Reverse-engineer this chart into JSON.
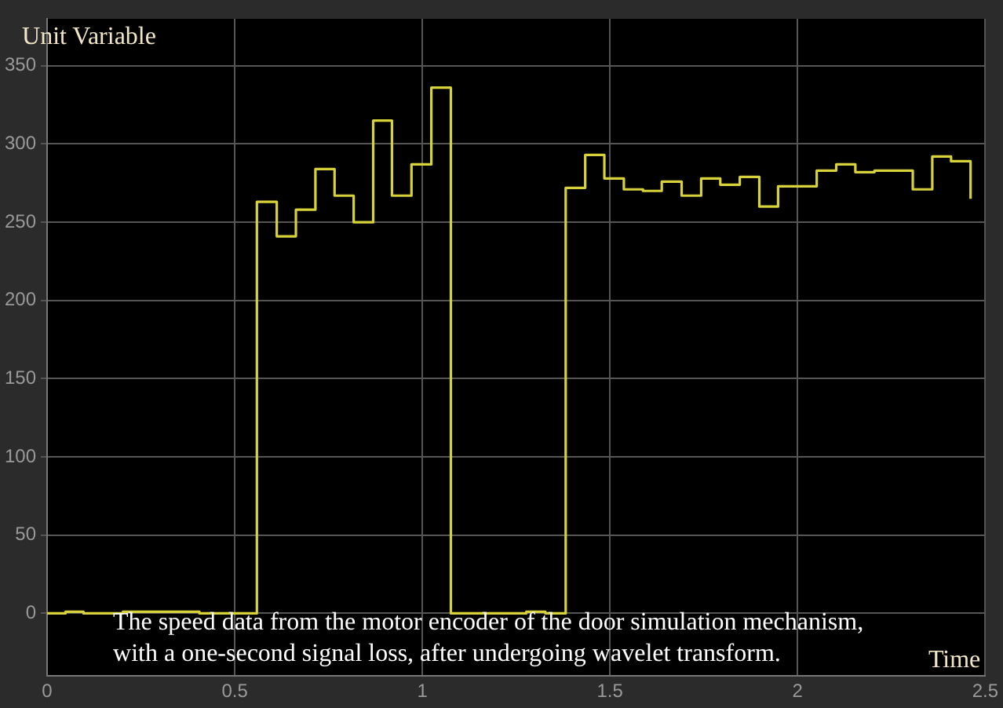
{
  "chart_data": {
    "type": "step",
    "ylabel": "Unit Variable",
    "xlabel": "Time",
    "annotations": [
      "The speed data from the motor encoder of the door simulation mechanism, with a one-second signal loss, after undergoing wavelet transform."
    ],
    "x": [
      0,
      0.049,
      0.097,
      0.202,
      0.406,
      0.559,
      0.612,
      0.663,
      0.715,
      0.766,
      0.817,
      0.869,
      0.919,
      0.971,
      1.024,
      1.076,
      1.277,
      1.328,
      1.382,
      1.434,
      1.485,
      1.537,
      1.588,
      1.638,
      1.691,
      1.743,
      1.794,
      1.846,
      1.898,
      1.948,
      2.0,
      2.051,
      2.103,
      2.154,
      2.205,
      2.255,
      2.307,
      2.359,
      2.409,
      2.461
    ],
    "series": [
      {
        "color": "#d8d23a",
        "values": [
          0,
          1,
          0,
          1,
          0,
          263,
          241,
          258,
          284,
          267,
          250,
          315,
          267,
          287,
          336,
          0,
          1,
          0,
          272,
          293,
          278,
          271,
          270,
          276,
          267,
          278,
          274,
          279,
          260,
          273,
          273,
          283,
          287,
          282,
          283,
          283,
          271,
          292,
          289,
          265
        ]
      }
    ],
    "xlim": [
      0,
      2.5
    ],
    "xticks": [
      0,
      0.5,
      1,
      1.5,
      2,
      2.5
    ],
    "ylim": [
      -40,
      380
    ],
    "yticks": [
      0,
      50,
      100,
      150,
      200,
      250,
      300,
      350
    ],
    "grid": true,
    "legend": false
  }
}
